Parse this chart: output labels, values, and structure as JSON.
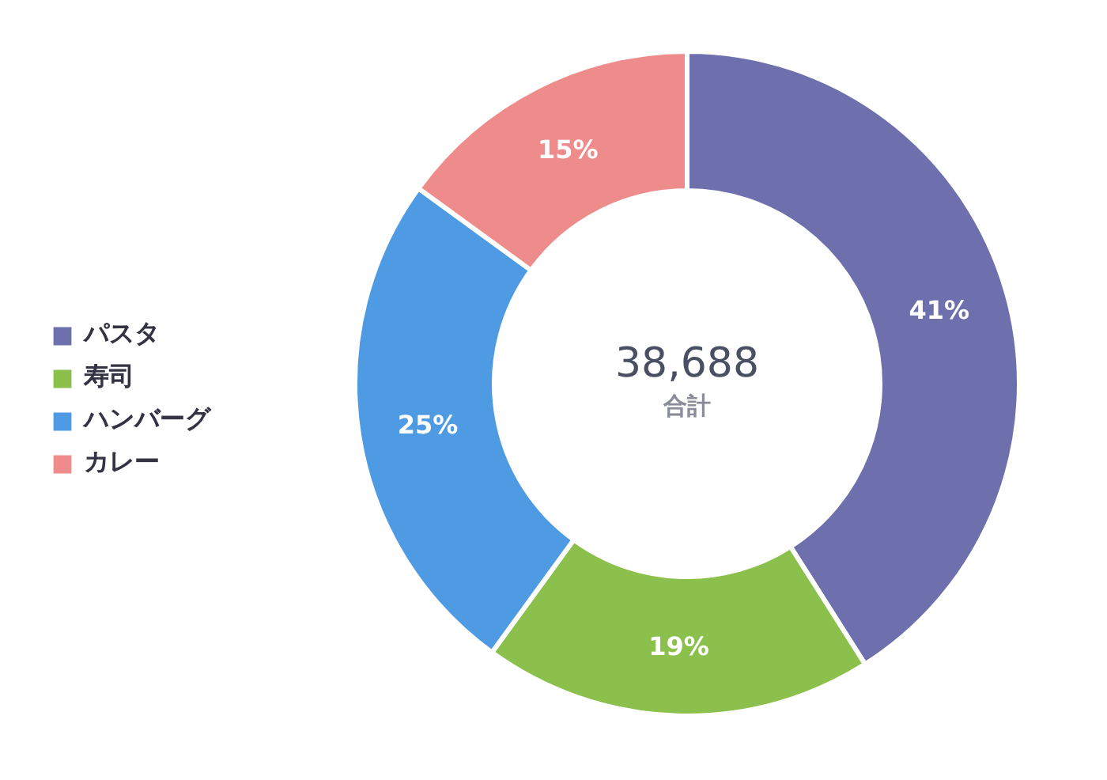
{
  "chart_data": {
    "type": "donut",
    "categories": [
      "パスタ",
      "寿司",
      "ハンバーグ",
      "カレー"
    ],
    "values": [
      41,
      19,
      25,
      15
    ],
    "colors": [
      "#6e70ad",
      "#8bc04c",
      "#4f9be3",
      "#ee8b8b"
    ],
    "value_labels": [
      "41%",
      "19%",
      "25%",
      "15%"
    ],
    "legend": "left",
    "annotations": [
      "38,688",
      "合計"
    ]
  }
}
